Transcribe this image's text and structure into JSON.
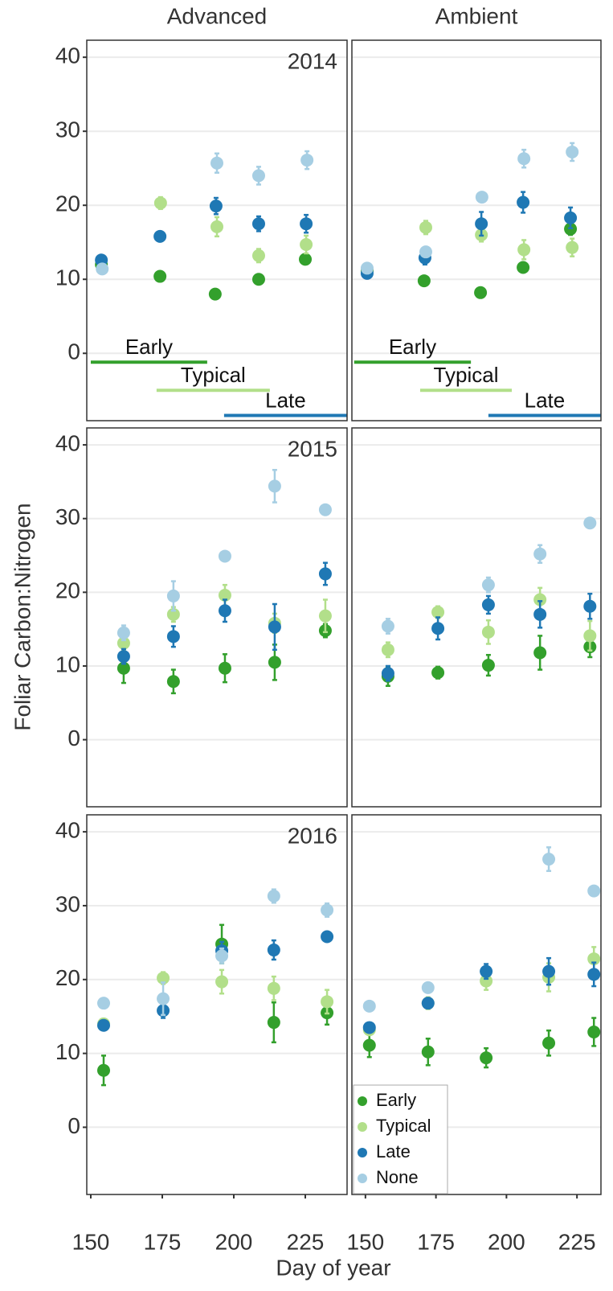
{
  "chart_data": {
    "type": "scatter",
    "ylabel": "Foliar Carbon:Nitrogen",
    "xlabel": "Day of year",
    "columns": [
      "Advanced",
      "Ambient"
    ],
    "ylim": [
      -9.1,
      42.3
    ],
    "yticks": [
      0,
      10,
      20,
      30,
      40
    ],
    "xticks": [
      150,
      175,
      200,
      225
    ],
    "grid": true,
    "legend": "bottom-left",
    "series": [
      {
        "name": "Early",
        "color": "#33a02c"
      },
      {
        "name": "Typical",
        "color": "#b2df8a"
      },
      {
        "name": "Late",
        "color": "#1f78b4"
      },
      {
        "name": "None",
        "color": "#a6cee3"
      }
    ],
    "panels": [
      {
        "column": 0,
        "row": 0,
        "year": "2014",
        "xlim": [
          148.6,
          239.6
        ],
        "phases": [
          {
            "label": "Early",
            "start": 150,
            "end": 190.7,
            "y": -1.2,
            "series": 0
          },
          {
            "label": "Typical",
            "start": 173,
            "end": 212.6,
            "y": -5,
            "series": 1
          },
          {
            "label": "Late",
            "start": 196.6,
            "end": 245,
            "y": -8.4,
            "series": 2
          }
        ],
        "points": [
          {
            "x": [
              153.7,
              174.2,
              193.5,
              208.7,
              225.0
            ],
            "values": [
              12.0,
              10.4,
              8.0,
              10.0,
              12.7
            ],
            "errors": [
              0.6,
              0.5,
              0.5,
              0.5,
              0.6
            ]
          },
          {
            "x": [
              174.4,
              194.1,
              208.7,
              225.3
            ],
            "values": [
              20.3,
              17.1,
              13.2,
              14.7
            ],
            "errors": [
              0.8,
              1.3,
              0.9,
              1.2
            ]
          },
          {
            "x": [
              153.7,
              174.2,
              193.8,
              208.7,
              225.3
            ],
            "values": [
              12.6,
              15.8,
              19.9,
              17.5,
              17.5
            ],
            "errors": [
              0.5,
              0.6,
              1.1,
              1.0,
              1.2
            ]
          },
          {
            "x": [
              154.0,
              194.1,
              208.7,
              225.6
            ],
            "values": [
              11.4,
              25.7,
              24.0,
              26.1
            ],
            "errors": [
              0.5,
              1.3,
              1.2,
              1.2
            ]
          }
        ]
      },
      {
        "column": 1,
        "row": 0,
        "xlim": [
          145.2,
          233.5
        ],
        "phases": [
          {
            "label": "Early",
            "start": 146,
            "end": 187.4,
            "y": -1.2,
            "series": 0
          },
          {
            "label": "Typical",
            "start": 169.4,
            "end": 201.9,
            "y": -5,
            "series": 1
          },
          {
            "label": "Late",
            "start": 193.6,
            "end": 240,
            "y": -8.4,
            "series": 2
          }
        ],
        "points": [
          {
            "x": [
              150.6,
              170.8,
              190.8,
              205.9,
              222.7
            ],
            "values": [
              11.2,
              9.8,
              8.2,
              11.6,
              16.8
            ],
            "errors": [
              0.5,
              0.5,
              0.5,
              0.5,
              0.8
            ]
          },
          {
            "x": [
              171.4,
              191.1,
              206.2,
              223.3
            ],
            "values": [
              17.0,
              16.0,
              14.0,
              14.3
            ],
            "errors": [
              0.9,
              0.9,
              1.3,
              1.2
            ]
          },
          {
            "x": [
              150.6,
              171.1,
              191.1,
              205.9,
              222.7
            ],
            "values": [
              10.8,
              12.9,
              17.5,
              20.4,
              18.3
            ],
            "errors": [
              0.5,
              0.9,
              1.6,
              1.4,
              1.4
            ]
          },
          {
            "x": [
              150.6,
              171.4,
              191.3,
              206.2,
              223.3
            ],
            "values": [
              11.5,
              13.7,
              21.1,
              26.3,
              27.2
            ],
            "errors": [
              0.5,
              0.6,
              0.6,
              1.2,
              1.2
            ]
          }
        ]
      },
      {
        "column": 0,
        "row": 1,
        "year": "2015",
        "xlim": [
          148.6,
          239.6
        ],
        "points": [
          {
            "x": [
              161.5,
              178.9,
              196.9,
              214.3,
              232.0
            ],
            "values": [
              9.7,
              7.9,
              9.7,
              10.5,
              14.8
            ],
            "errors": [
              2.0,
              1.6,
              1.9,
              2.4,
              0.9
            ]
          },
          {
            "x": [
              161.5,
              178.9,
              196.9,
              214.3,
              232.0
            ],
            "values": [
              13.1,
              17.0,
              19.6,
              15.8,
              16.8
            ],
            "errors": [
              0.9,
              1.0,
              1.4,
              1.3,
              2.2
            ]
          },
          {
            "x": [
              161.5,
              178.9,
              196.9,
              214.3,
              232.0
            ],
            "values": [
              11.3,
              14.0,
              17.5,
              15.3,
              22.5
            ],
            "errors": [
              1.0,
              1.4,
              1.5,
              3.1,
              1.5
            ]
          },
          {
            "x": [
              161.5,
              178.9,
              196.9,
              214.3,
              232.0
            ],
            "values": [
              14.5,
              19.5,
              24.9,
              34.4,
              31.2
            ],
            "errors": [
              1.0,
              2.0,
              0.6,
              2.2,
              0.6
            ]
          }
        ]
      },
      {
        "column": 1,
        "row": 1,
        "xlim": [
          145.2,
          233.5
        ],
        "points": [
          {
            "x": [
              158.0,
              175.7,
              193.6,
              211.9,
              229.6
            ],
            "values": [
              8.6,
              9.1,
              10.1,
              11.8,
              12.6
            ],
            "errors": [
              1.3,
              0.8,
              1.4,
              2.3,
              1.4
            ]
          },
          {
            "x": [
              158.0,
              175.7,
              193.6,
              211.9,
              229.6
            ],
            "values": [
              12.2,
              17.3,
              14.6,
              19.0,
              14.1
            ],
            "errors": [
              1.0,
              0.8,
              1.6,
              1.6,
              2.0
            ]
          },
          {
            "x": [
              158.0,
              175.7,
              193.6,
              211.9,
              229.6
            ],
            "values": [
              9.0,
              15.1,
              18.3,
              17.0,
              18.1
            ],
            "errors": [
              1.0,
              1.5,
              1.2,
              1.8,
              1.7
            ]
          },
          {
            "x": [
              158.0,
              193.6,
              211.9,
              229.6
            ],
            "values": [
              15.4,
              21.0,
              25.2,
              29.4
            ],
            "errors": [
              1.0,
              1.0,
              1.2,
              0.5
            ]
          }
        ]
      },
      {
        "column": 0,
        "row": 2,
        "year": "2016",
        "xlim": [
          148.6,
          239.6
        ],
        "points": [
          {
            "x": [
              154.5,
              195.8,
              214.0,
              232.6
            ],
            "values": [
              7.7,
              24.8,
              14.2,
              15.5
            ],
            "errors": [
              2.0,
              2.6,
              2.7,
              1.6
            ]
          },
          {
            "x": [
              154.5,
              175.3,
              195.8,
              214.0,
              232.6
            ],
            "values": [
              14.0,
              20.2,
              19.7,
              18.8,
              17.0
            ],
            "errors": [
              0.5,
              0.8,
              1.6,
              1.6,
              1.6
            ]
          },
          {
            "x": [
              154.5,
              175.3,
              195.8,
              214.0,
              232.6
            ],
            "values": [
              13.8,
              15.8,
              23.9,
              24.0,
              25.8
            ],
            "errors": [
              0.5,
              1.0,
              1.2,
              1.3,
              0.6
            ]
          },
          {
            "x": [
              154.5,
              175.3,
              195.8,
              214.0,
              232.6
            ],
            "values": [
              16.8,
              17.4,
              23.2,
              31.3,
              29.4
            ],
            "errors": [
              0.6,
              2.2,
              1.0,
              0.9,
              0.9
            ]
          }
        ]
      },
      {
        "column": 1,
        "row": 2,
        "xlim": [
          145.2,
          233.5
        ],
        "points": [
          {
            "x": [
              151.4,
              172.2,
              192.8,
              215.0,
              231.0
            ],
            "values": [
              11.1,
              10.2,
              9.4,
              11.4,
              12.9
            ],
            "errors": [
              1.6,
              1.8,
              1.3,
              1.7,
              1.9
            ]
          },
          {
            "x": [
              151.4,
              172.2,
              192.8,
              215.0,
              231.0
            ],
            "values": [
              13.2,
              16.8,
              19.8,
              20.3,
              22.8
            ],
            "errors": [
              0.6,
              0.8,
              1.2,
              1.9,
              1.6
            ]
          },
          {
            "x": [
              151.4,
              172.2,
              192.8,
              215.0,
              231.0
            ],
            "values": [
              13.5,
              16.8,
              21.1,
              21.1,
              20.7
            ],
            "errors": [
              0.6,
              0.6,
              1.0,
              1.8,
              1.6
            ]
          },
          {
            "x": [
              151.4,
              172.2,
              215.0,
              231.0
            ],
            "values": [
              16.4,
              18.9,
              36.3,
              32.0
            ],
            "errors": [
              0.5,
              0.5,
              1.6,
              0.5
            ]
          }
        ]
      }
    ]
  }
}
